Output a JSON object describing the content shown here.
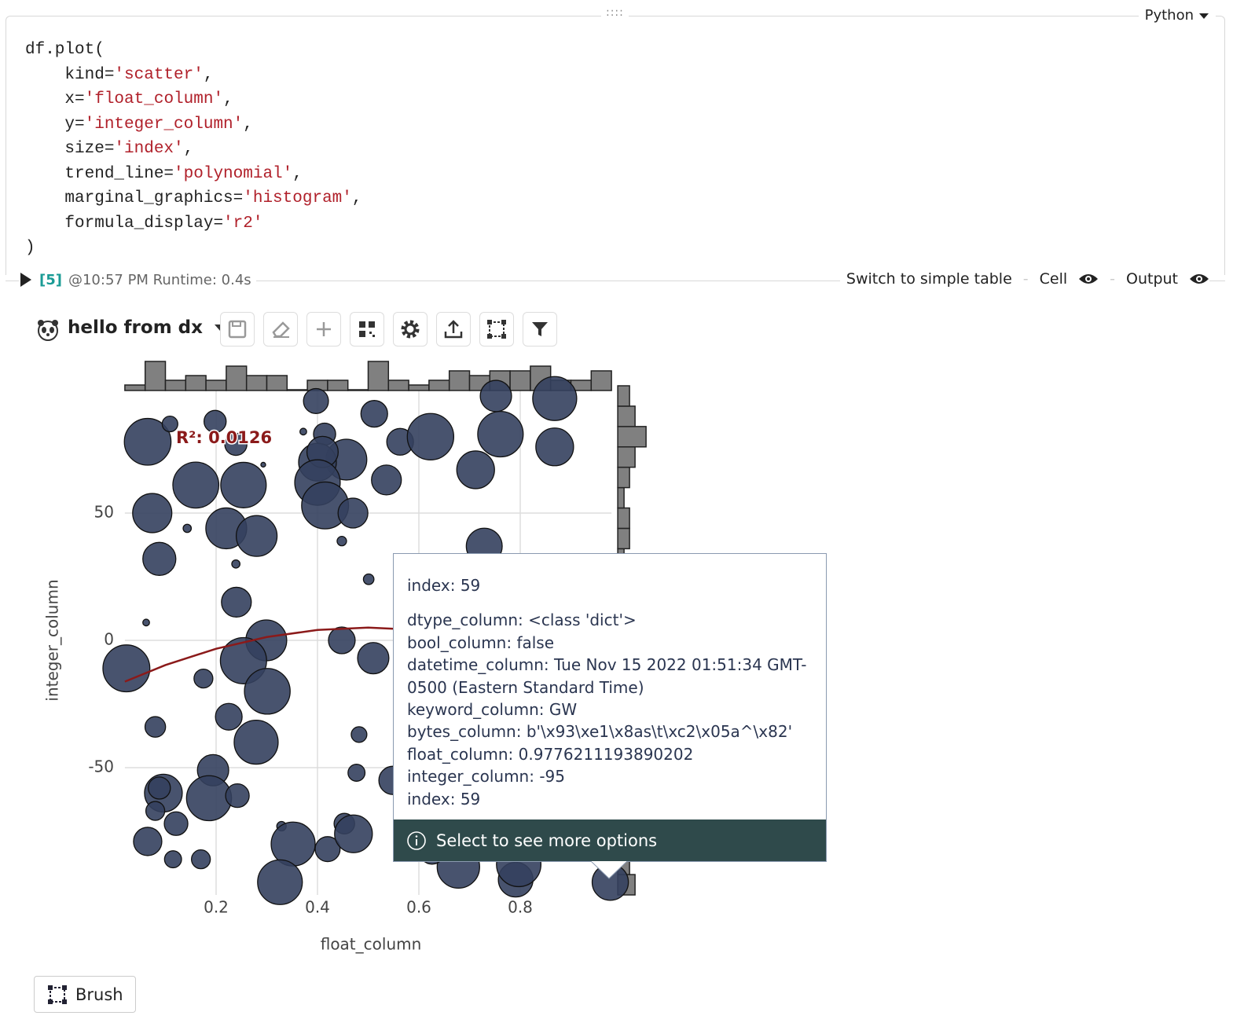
{
  "cell": {
    "language": "Python",
    "code": [
      [
        "df.plot("
      ],
      [
        "    kind=",
        "'scatter'",
        ","
      ],
      [
        "    x=",
        "'float_column'",
        ","
      ],
      [
        "    y=",
        "'integer_column'",
        ","
      ],
      [
        "    size=",
        "'index'",
        ","
      ],
      [
        "    trend_line=",
        "'polynomial'",
        ","
      ],
      [
        "    marginal_graphics=",
        "'histogram'",
        ","
      ],
      [
        "    formula_display=",
        "'r2'"
      ],
      [
        ")"
      ]
    ],
    "count": "[5]",
    "time": "@10:57 PM Runtime: 0.4s",
    "switch": "Switch to simple table",
    "cell_toggle": "Cell",
    "output_toggle": "Output"
  },
  "toolbar": {
    "title": "hello from dx"
  },
  "chart_data": {
    "type": "scatter",
    "xlabel": "float_column",
    "ylabel": "integer_column",
    "annotation": "R²: 0.0126",
    "color": "#34405e",
    "xlim": [
      0.02,
      0.98
    ],
    "ylim": [
      -100,
      100
    ],
    "xticks": [
      0.2,
      0.4,
      0.6,
      0.8
    ],
    "yticks": [
      -50,
      0,
      50
    ],
    "grid": true,
    "x": [
      0.065,
      0.109,
      0.198,
      0.239,
      0.372,
      0.397,
      0.414,
      0.512,
      0.563,
      0.623,
      0.752,
      0.868,
      0.761,
      0.868,
      0.712,
      0.536,
      0.457,
      0.4,
      0.41,
      0.4,
      0.415,
      0.47,
      0.16,
      0.254,
      0.074,
      0.22,
      0.28,
      0.293,
      0.143,
      0.088,
      0.239,
      0.448,
      0.729,
      0.501,
      0.24,
      0.062,
      0.299,
      0.448,
      0.51,
      0.023,
      0.254,
      0.301,
      0.175,
      0.225,
      0.08,
      0.279,
      0.482,
      0.194,
      0.477,
      0.096,
      0.186,
      0.242,
      0.088,
      0.08,
      0.121,
      0.065,
      0.115,
      0.17,
      0.329,
      0.352,
      0.42,
      0.453,
      0.471,
      0.326,
      0.549,
      0.678,
      0.791,
      0.797,
      0.9776211193890202,
      0.626
    ],
    "values": [
      78,
      85,
      86,
      77,
      82,
      94,
      81,
      89,
      78,
      80,
      96,
      95,
      81,
      76,
      67,
      63,
      71,
      70,
      74,
      62,
      53,
      50,
      61,
      61,
      50,
      44,
      41,
      69,
      44,
      32,
      30,
      39,
      37,
      24,
      15,
      7,
      0,
      0,
      -7,
      -11,
      -8,
      -20,
      -15,
      -30,
      -34,
      -40,
      -37,
      -51,
      -52,
      -60,
      -62,
      -61,
      -58,
      -67,
      -72,
      -79,
      -86,
      -86,
      -73,
      -80,
      -82,
      -72,
      -76,
      -95,
      -55,
      -89,
      -94,
      -88,
      -95,
      -83
    ],
    "sizes": [
      98,
      11,
      22,
      22,
      2,
      28,
      22,
      32,
      32,
      97,
      44,
      87,
      93,
      64,
      64,
      40,
      75,
      64,
      44,
      93,
      99,
      40,
      95,
      93,
      69,
      75,
      75,
      1,
      3,
      49,
      3,
      4,
      58,
      5,
      40,
      2,
      75,
      32,
      44,
      99,
      96,
      94,
      16,
      32,
      19,
      87,
      11,
      44,
      13,
      64,
      91,
      25,
      22,
      16,
      25,
      36,
      13,
      16,
      4,
      87,
      28,
      19,
      64,
      90,
      36,
      81,
      54,
      89,
      59,
      28
    ],
    "trend_line": {
      "color": "#8b1a1a",
      "x": [
        0.02,
        0.1,
        0.2,
        0.3,
        0.4,
        0.5,
        0.6,
        0.7,
        0.8,
        0.9,
        0.98
      ],
      "values": [
        -16.2,
        -9.7,
        -3.3,
        1.3,
        4.1,
        5,
        4.1,
        1.3,
        -3.3,
        -9.7,
        -16.2
      ]
    },
    "x_histogram": {
      "color": "#808080",
      "bins": [
        0.02,
        0.06,
        0.1,
        0.14,
        0.18,
        0.22,
        0.26,
        0.3,
        0.34,
        0.38,
        0.42,
        0.46,
        0.5,
        0.54,
        0.58,
        0.62,
        0.66,
        0.7,
        0.74,
        0.78,
        0.82,
        0.86,
        0.9,
        0.94,
        0.98
      ],
      "counts": [
        1,
        6,
        2,
        3,
        2,
        5,
        3,
        3,
        0,
        2,
        2,
        0,
        6,
        2,
        1,
        2,
        4,
        3,
        4,
        4,
        5,
        2,
        2,
        4
      ]
    },
    "y_histogram": {
      "color": "#808080",
      "bins": [
        -100,
        -92,
        -84,
        -76,
        -68,
        -60,
        -52,
        -44,
        -36,
        -28,
        -20,
        -12,
        -4,
        4,
        12,
        20,
        28,
        36,
        44,
        52,
        60,
        68,
        76,
        84,
        92,
        100
      ],
      "counts": [
        3,
        2,
        2,
        1,
        2,
        3,
        2,
        2,
        3,
        2,
        1,
        2,
        2,
        3,
        2,
        2,
        1,
        2,
        2,
        1,
        2,
        3,
        5,
        3,
        2
      ]
    }
  },
  "tooltip": {
    "title": "index: 59",
    "lines": [
      "dtype_column: <class 'dict'>",
      "bool_column: false",
      "datetime_column: Tue Nov 15 2022 01:51:34 GMT-0500 (Eastern Standard Time)",
      "keyword_column: GW",
      "bytes_column: b'\\x93\\xe1\\x8as\\t\\xc2\\x05a^\\x82'",
      "float_column: 0.9776211193890202",
      "integer_column: -95",
      "index: 59"
    ],
    "footer": "Select to see more options"
  },
  "brush": "Brush"
}
